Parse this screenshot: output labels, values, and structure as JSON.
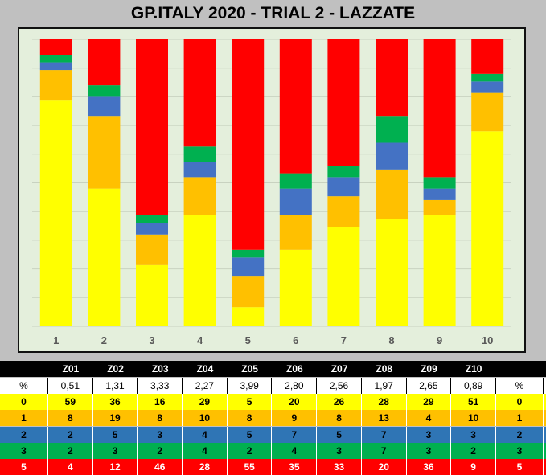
{
  "title": "GP.ITALY 2020 - TRIAL 2 - LAZZATE",
  "chart_data": {
    "type": "bar",
    "stacked": true,
    "normalized": true,
    "categories": [
      "1",
      "2",
      "3",
      "4",
      "5",
      "6",
      "7",
      "8",
      "9",
      "10"
    ],
    "series": [
      {
        "name": "0",
        "color": "#ffff00",
        "values": [
          59,
          36,
          16,
          29,
          5,
          20,
          26,
          28,
          29,
          51
        ]
      },
      {
        "name": "1",
        "color": "#ffc000",
        "values": [
          8,
          19,
          8,
          10,
          8,
          9,
          8,
          13,
          4,
          10
        ]
      },
      {
        "name": "2",
        "color": "#4472c4",
        "values": [
          2,
          5,
          3,
          4,
          5,
          7,
          5,
          7,
          3,
          3
        ]
      },
      {
        "name": "3",
        "color": "#00b050",
        "values": [
          2,
          3,
          2,
          4,
          2,
          4,
          3,
          7,
          3,
          2
        ]
      },
      {
        "name": "5",
        "color": "#ff0000",
        "values": [
          4,
          12,
          46,
          28,
          55,
          35,
          33,
          20,
          36,
          9
        ]
      }
    ],
    "ylim": [
      0,
      100
    ],
    "grid": true,
    "legend": "none"
  },
  "table": {
    "columns": [
      "Z01",
      "Z02",
      "Z03",
      "Z04",
      "Z05",
      "Z06",
      "Z07",
      "Z08",
      "Z09",
      "Z10"
    ],
    "rows": [
      {
        "label": "%",
        "values": [
          "0,51",
          "1,31",
          "3,33",
          "2,27",
          "3,99",
          "2,80",
          "2,56",
          "1,97",
          "2,65",
          "0,89"
        ],
        "end": "%",
        "bg": "#ffffff",
        "fg": "#000000"
      },
      {
        "label": "0",
        "values": [
          "59",
          "36",
          "16",
          "29",
          "5",
          "20",
          "26",
          "28",
          "29",
          "51"
        ],
        "end": "0",
        "bg": "#ffff00",
        "fg": "#000000"
      },
      {
        "label": "1",
        "values": [
          "8",
          "19",
          "8",
          "10",
          "8",
          "9",
          "8",
          "13",
          "4",
          "10"
        ],
        "end": "1",
        "bg": "#ffc000",
        "fg": "#000000"
      },
      {
        "label": "2",
        "values": [
          "2",
          "5",
          "3",
          "4",
          "5",
          "7",
          "5",
          "7",
          "3",
          "3"
        ],
        "end": "2",
        "bg": "#2f75b5",
        "fg": "#000000"
      },
      {
        "label": "3",
        "values": [
          "2",
          "3",
          "2",
          "4",
          "2",
          "4",
          "3",
          "7",
          "3",
          "2"
        ],
        "end": "3",
        "bg": "#00b050",
        "fg": "#000000"
      },
      {
        "label": "5",
        "values": [
          "4",
          "12",
          "46",
          "28",
          "55",
          "35",
          "33",
          "20",
          "36",
          "9"
        ],
        "end": "5",
        "bg": "#ff0000",
        "fg": "#ffffff"
      }
    ]
  }
}
